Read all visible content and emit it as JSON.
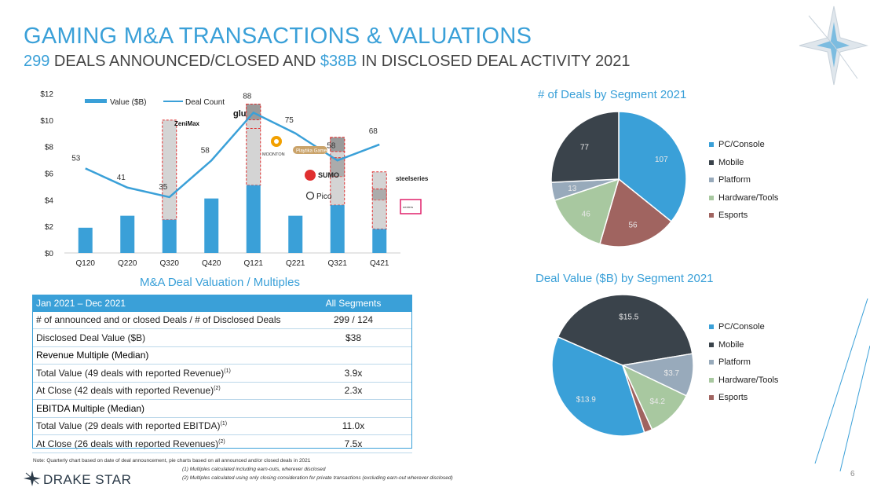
{
  "header": {
    "title": "GAMING M&A TRANSACTIONS & VALUATIONS",
    "subtitle_deals": "299",
    "subtitle_mid": " DEALS ANNOUNCED/CLOSED AND ",
    "subtitle_value": "$38B",
    "subtitle_end": " IN DISCLOSED DEAL ACTIVITY 2021"
  },
  "chart_data": [
    {
      "type": "bar",
      "categories": [
        "Q120",
        "Q220",
        "Q320",
        "Q420",
        "Q121",
        "Q221",
        "Q321",
        "Q421"
      ],
      "series": [
        {
          "name": "Value ($B)",
          "type": "bar",
          "values": [
            1.9,
            2.8,
            2.5,
            4.1,
            5.1,
            2.8,
            3.6,
            1.8
          ],
          "color": "#3aa0d8"
        },
        {
          "name": "Deal Count",
          "type": "line",
          "values": [
            53,
            41,
            35,
            58,
            88,
            75,
            58,
            68
          ],
          "color": "#3aa0d8"
        }
      ],
      "stacked_highlight_totals": [
        null,
        null,
        10.0,
        null,
        11.2,
        null,
        8.7,
        6.1
      ],
      "ylim": [
        0,
        12
      ],
      "yticks": [
        "$0",
        "$2",
        "$4",
        "$6",
        "$8",
        "$10",
        "$12"
      ],
      "line_ylim": [
        0,
        100
      ],
      "legend_placement": "top"
    },
    {
      "type": "pie",
      "title": "# of Deals by Segment 2021",
      "labels": [
        "PC/Console",
        "Esports",
        "Hardware/Tools",
        "Platform",
        "Mobile"
      ],
      "values": [
        107,
        56,
        46,
        13,
        77
      ],
      "display": [
        "107",
        "56",
        "46",
        "13",
        "77"
      ],
      "colors": [
        "#3aa0d8",
        "#a06460",
        "#a8c8a0",
        "#98aabb",
        "#3a434b"
      ]
    },
    {
      "type": "pie",
      "title": "Deal Value ($B) by Segment 2021",
      "labels": [
        "PC/Console",
        "Mobile",
        "Platform",
        "Hardware/Tools",
        "Esports"
      ],
      "values": [
        13.9,
        15.5,
        3.7,
        4.2,
        0.7
      ],
      "display": [
        "$13.9",
        "$15.5",
        "$3.7",
        "$4.2",
        ""
      ],
      "colors": [
        "#3aa0d8",
        "#3a434b",
        "#98aabb",
        "#a8c8a0",
        "#a06460"
      ]
    }
  ],
  "legend": {
    "items": [
      {
        "label": "PC/Console",
        "color": "#3aa0d8"
      },
      {
        "label": "Mobile",
        "color": "#3a434b"
      },
      {
        "label": "Platform",
        "color": "#98aabb"
      },
      {
        "label": "Hardware/Tools",
        "color": "#a8c8a0"
      },
      {
        "label": "Esports",
        "color": "#a06460"
      }
    ]
  },
  "logos": {
    "zenimax": "ZeniMax",
    "moonton": "MOONTON",
    "playtika": "Playtika Games",
    "sumo": "SUMO",
    "pico": "Pico",
    "steelseries": "steelseries",
    "gamesdev": "nexters"
  },
  "valuation": {
    "title": "M&A Deal Valuation / Multiples",
    "header_left": "Jan 2021 – Dec 2021",
    "header_right": "All Segments",
    "rows": [
      {
        "label": "# of announced and or closed Deals / # of Disclosed Deals",
        "sup": "",
        "value": "299 / 124",
        "section": false
      },
      {
        "label": "Disclosed Deal Value ($B)",
        "sup": "",
        "value": "$38",
        "section": false
      },
      {
        "label": "Revenue Multiple (Median)",
        "sup": "",
        "value": "",
        "section": true
      },
      {
        "label": "Total Value (49 deals with reported Revenue)",
        "sup": "(1)",
        "value": "3.9x",
        "section": false
      },
      {
        "label": "At Close (42 deals with reported Revenue)",
        "sup": "(2)",
        "value": "2.3x",
        "section": false
      },
      {
        "label": "EBITDA Multiple (Median)",
        "sup": "",
        "value": "",
        "section": true
      },
      {
        "label": "Total Value (29 deals with reported EBITDA)",
        "sup": "(1)",
        "value": "11.0x",
        "section": false
      },
      {
        "label": "At Close (26 deals with reported Revenues)",
        "sup": "(2)",
        "value": "7.5x",
        "section": false
      }
    ]
  },
  "footer": {
    "note1": "Note: Quarterly chart based on date of deal announcement, pie charts based on all announced and/or closed deals in 2021",
    "note2": "(1) Multiples calculated including earn-outs, wherever disclosed",
    "note3": "(2) Multiples calculated using only closing consideration for private transactions (excluding earn-out wherever disclosed)",
    "brand": "DRAKE STAR",
    "page": "6"
  }
}
